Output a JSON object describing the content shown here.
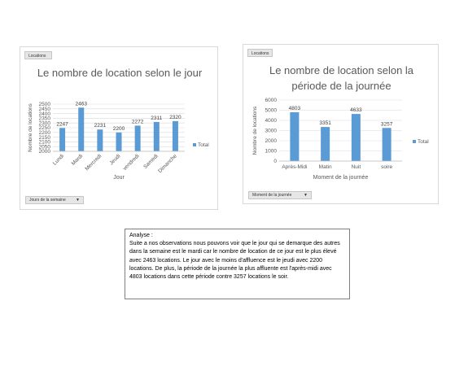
{
  "charts": [
    {
      "field_button": "Locations",
      "filter_label": "Jours de la semaine",
      "title": "Le nombre de location selon le jour",
      "legend": "Total",
      "colors": {
        "bar": "#5b9bd5"
      }
    },
    {
      "field_button": "Locations",
      "filter_label": "Moment de la journée",
      "title": "Le nombre de location selon la période de la journée",
      "legend": "Total",
      "colors": {
        "bar": "#5b9bd5"
      }
    }
  ],
  "chart_data": [
    {
      "type": "bar",
      "title": "Le nombre de location selon le jour",
      "categories": [
        "Lundi",
        "Mardi",
        "Mercredi",
        "Jeudi",
        "vendredi",
        "Samedi",
        "Dimanche"
      ],
      "series": [
        {
          "name": "Total",
          "values": [
            2247,
            2463,
            2231,
            2200,
            2272,
            2311,
            2320
          ]
        }
      ],
      "xlabel": "Jour",
      "ylabel": "Nombre de locations",
      "ylim": [
        2000,
        2500
      ],
      "yticks": [
        2000,
        2050,
        2100,
        2150,
        2200,
        2250,
        2300,
        2350,
        2400,
        2450,
        2500
      ],
      "grid": true,
      "legend_position": "right"
    },
    {
      "type": "bar",
      "title": "Le nombre de location selon la période de la journée",
      "categories": [
        "Après-Midi",
        "Matin",
        "Nuit",
        "soire"
      ],
      "series": [
        {
          "name": "Total",
          "values": [
            4803,
            3351,
            4633,
            3257
          ]
        }
      ],
      "xlabel": "Moment de la journée",
      "ylabel": "Nombre de locations",
      "ylim": [
        0,
        6000
      ],
      "yticks": [
        0,
        1000,
        2000,
        3000,
        4000,
        5000,
        6000
      ],
      "grid": true,
      "legend_position": "right"
    }
  ],
  "analysis": {
    "title": "Analyse :",
    "text": "Suite a nos observations nous pouvons voir que le jour qui se demarque des autres dans la semaine est le mardi car le nombre de location de ce jour est le plus élevé avec 2463 locations. Le jour avec le moins d'affluence est le jeudi avec 2200  locations. De plus, la période de la journée la plus affluente est l'après-midi avec 4803 locations dans cette période contre 3257 locations le soir."
  }
}
